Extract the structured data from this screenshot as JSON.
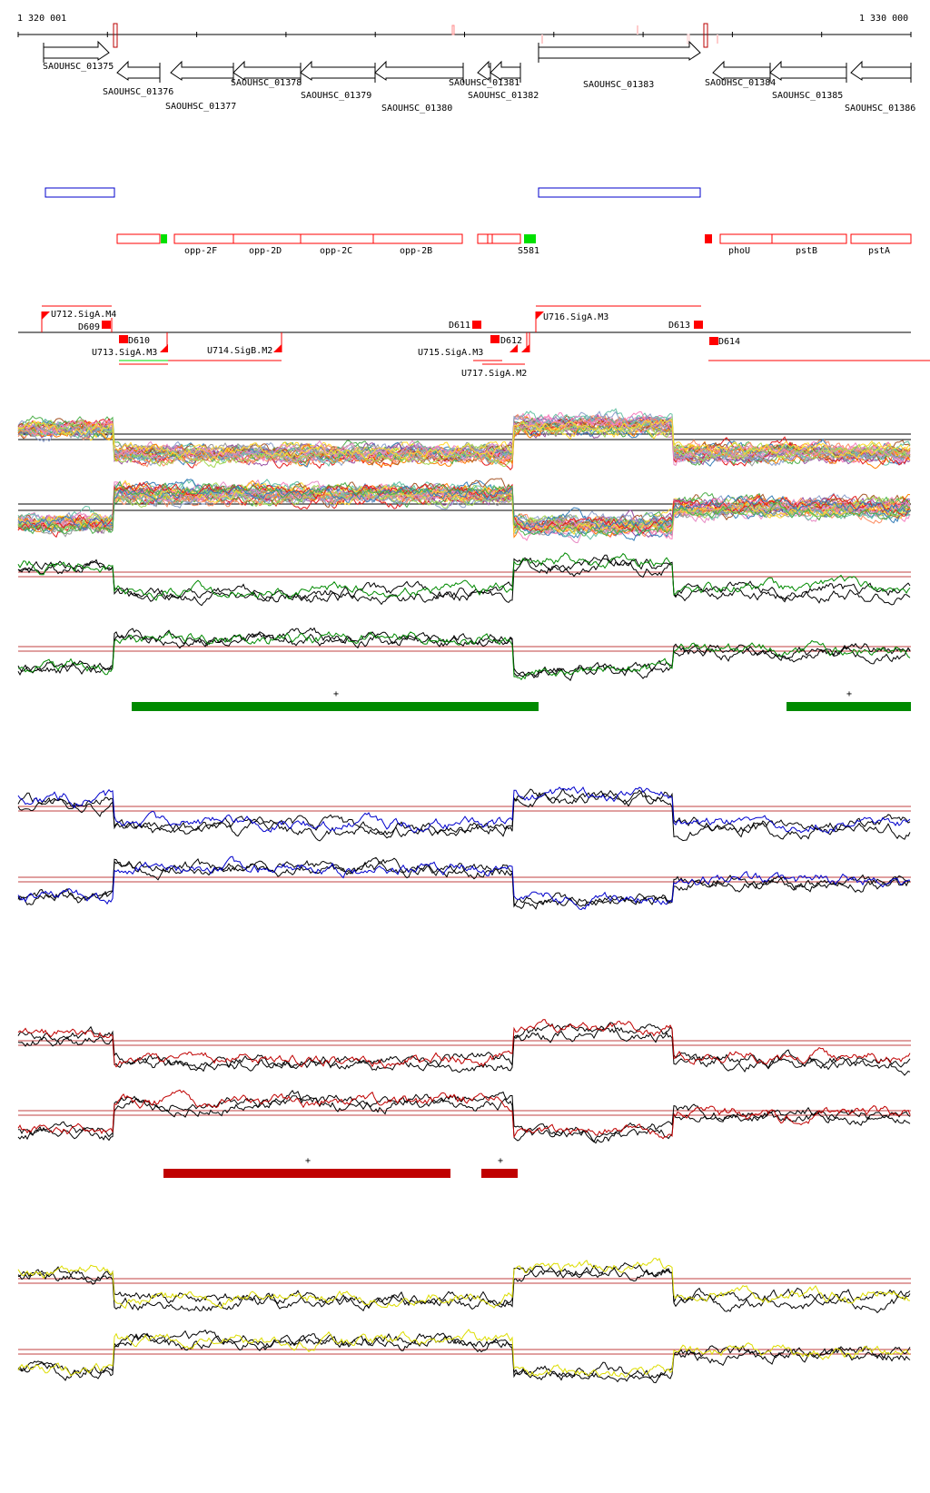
{
  "coordinates": {
    "start": "1 320 001",
    "end": "1 330 000"
  },
  "genes": [
    {
      "name": "SAOUHSC_01375",
      "strand": "+"
    },
    {
      "name": "SAOUHSC_01376",
      "strand": "-"
    },
    {
      "name": "SAOUHSC_01377",
      "strand": "-"
    },
    {
      "name": "SAOUHSC_01378",
      "strand": "-"
    },
    {
      "name": "SAOUHSC_01379",
      "strand": "-"
    },
    {
      "name": "SAOUHSC_01380",
      "strand": "-"
    },
    {
      "name": "SAOUHSC_01381",
      "strand": "-"
    },
    {
      "name": "SAOUHSC_01382",
      "strand": "-"
    },
    {
      "name": "SAOUHSC_01383",
      "strand": "+"
    },
    {
      "name": "SAOUHSC_01384",
      "strand": "-"
    },
    {
      "name": "SAOUHSC_01385",
      "strand": "-"
    },
    {
      "name": "SAOUHSC_01386",
      "strand": "-"
    }
  ],
  "annotations": [
    "opp-2F",
    "opp-2D",
    "opp-2C",
    "opp-2B",
    "S581",
    "phoU",
    "pstB",
    "pstA"
  ],
  "features": [
    "U712.SigA.M4",
    "D609",
    "D610",
    "U713.SigA.M3",
    "U714.SigB.M2",
    "D611",
    "U715.SigA.M3",
    "U717.SigA.M2",
    "D612",
    "U716.SigA.M3",
    "D613",
    "D614"
  ],
  "segment_marks": [
    "+",
    "+",
    "+",
    "+"
  ],
  "colors": {
    "green": "#008a00",
    "blue": "#0000cc",
    "red": "#c00000",
    "yellow": "#dddd00",
    "feature_red": "#ff0000",
    "bright_green": "#00e000"
  }
}
